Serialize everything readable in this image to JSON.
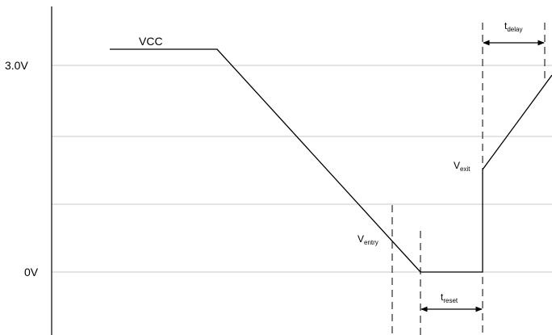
{
  "diagram": {
    "y_labels": {
      "v_high": "3.0V",
      "v_zero": "0V"
    },
    "signal": {
      "name": "VCC"
    },
    "labels": {
      "entry": {
        "main": "V",
        "sub": "entry"
      },
      "exit": {
        "main": "V",
        "sub": "exit"
      },
      "reset": {
        "main": "t",
        "sub": "reset"
      },
      "delay": {
        "main": "t",
        "sub": "delay"
      }
    },
    "colors": {
      "line": "#000000",
      "grid": "#c8c8c8",
      "background": "#ffffff"
    }
  }
}
